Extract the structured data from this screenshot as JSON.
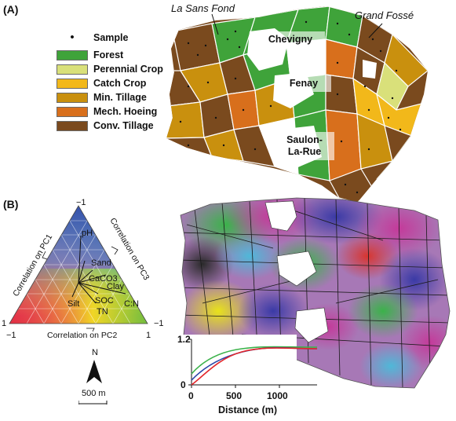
{
  "panels": {
    "a_tag": "(A)",
    "b_tag": "(B)"
  },
  "legend": {
    "sample_marker": "•",
    "sample_label": "Sample",
    "items": [
      {
        "label": "Forest",
        "color": "#3fa33a"
      },
      {
        "label": "Perennial Crop",
        "color": "#d9e07a"
      },
      {
        "label": "Catch Crop",
        "color": "#f2b81a"
      },
      {
        "label": "Min. Tillage",
        "color": "#c9900e"
      },
      {
        "label": "Mech. Hoeing",
        "color": "#d86f1c"
      },
      {
        "label": "Conv. Tillage",
        "color": "#7a4a1e"
      }
    ]
  },
  "map_a": {
    "site_labels": {
      "la_sans_fond": "La Sans Fond",
      "grand_fosse": "Grand Fossé"
    },
    "towns": {
      "chevigny": "Chevigny",
      "fenay": "Fenay",
      "saulon_line1": "Saulon-",
      "saulon_line2": "La-Rue"
    }
  },
  "ternary": {
    "corner_top": "−1",
    "corner_left_minus": "−1",
    "corner_left_plus": "1",
    "corner_right_plus": "1",
    "corner_right_minus": "−1",
    "axis_left": "Correlation on PC1",
    "axis_right": "Correlation on PC3",
    "axis_bottom": "Correlation on PC2",
    "variables": [
      "pH",
      "Sand",
      "CaCO3",
      "Clay",
      "Silt",
      "SOC",
      "TN",
      "C:N"
    ]
  },
  "north_label": "N",
  "scale_bar": "500 m",
  "variogram": {
    "xlabel": "Distance (m)",
    "x_ticks": [
      "0",
      "500",
      "1000"
    ],
    "y_ticks": [
      "0",
      "1.2"
    ],
    "colors": {
      "pc1": "#e3262b",
      "pc2": "#3bb24a",
      "pc3": "#2a46a8"
    }
  }
}
